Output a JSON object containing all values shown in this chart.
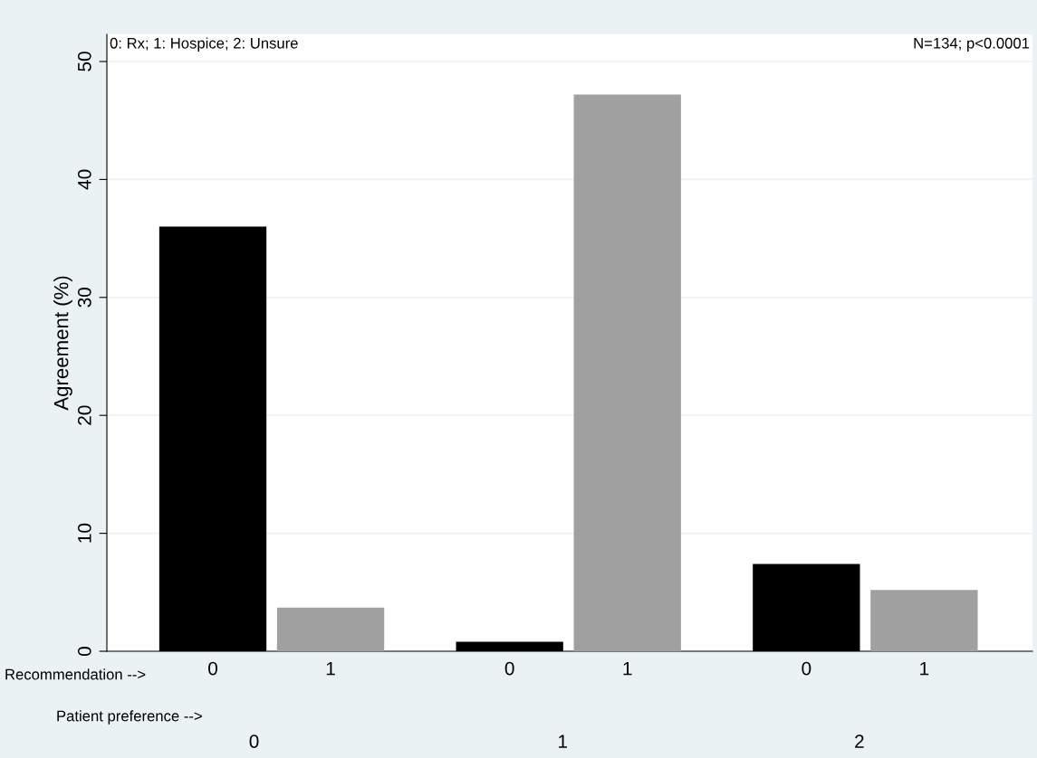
{
  "chart_data": {
    "type": "bar",
    "ylabel": "Agreement (%)",
    "categories": [
      "0",
      "1",
      "0",
      "1",
      "0",
      "1"
    ],
    "values": [
      36,
      3.7,
      0.8,
      47.2,
      7.4,
      5.2
    ],
    "colors": [
      "#000000",
      "#a0a0a0",
      "#000000",
      "#a0a0a0",
      "#000000",
      "#a0a0a0"
    ],
    "ylim": [
      0,
      52.3
    ],
    "yticks": [
      0,
      10,
      20,
      30,
      40,
      50
    ],
    "grid": "y",
    "annotations": [
      "0: Rx; 1: Hospice; 2: Unsure",
      "N=134; p<0.0001",
      "Recommendation -->",
      "Patient preference -->",
      "0",
      "1",
      "2"
    ]
  }
}
